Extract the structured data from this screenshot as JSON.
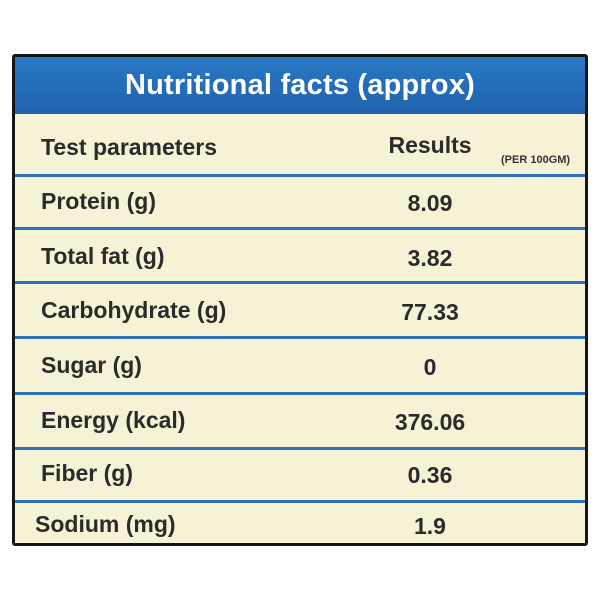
{
  "title": "Nutritional facts (approx)",
  "header": {
    "parameter_label": "Test parameters",
    "result_label": "Results",
    "unit_note": "(PER 100GM)"
  },
  "rows": [
    {
      "parameter": "Protein  (g)",
      "result": "8.09"
    },
    {
      "parameter": "Total fat  (g)",
      "result": "3.82"
    },
    {
      "parameter": "Carbohydrate  (g)",
      "result": "77.33"
    },
    {
      "parameter": "Sugar (g)",
      "result": "0"
    },
    {
      "parameter": "Energy  (kcal)",
      "result": "376.06"
    },
    {
      "parameter": "Fiber  (g)",
      "result": "0.36"
    },
    {
      "parameter": "Sodium  (mg)",
      "result": "1.9"
    }
  ],
  "colors": {
    "title_bar": "#1f63ad",
    "background": "#f5f2d6",
    "row_separator": "#2f72ba",
    "text": "#2b2b2b"
  }
}
